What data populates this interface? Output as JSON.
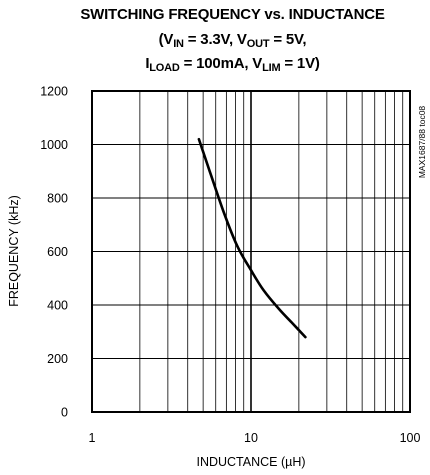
{
  "chart_data": {
    "type": "line",
    "title_line1": "SWITCHING FREQUENCY vs. INDUCTANCE",
    "title_line2": {
      "open": "(V",
      "vin_sub": "IN",
      "vin_val": " = 3.3V,  V",
      "vout_sub": "OUT",
      "vout_val": " = 5V,"
    },
    "title_line3": {
      "pre": "I",
      "iload_sub": "LOAD",
      "iload_val": " = 100mA,  V",
      "vlim_sub": "LIM",
      "vlim_val": " = 1V)"
    },
    "xlabel": "INDUCTANCE (µH)",
    "ylabel": "FREQUENCY (kHz)",
    "x_scale": "log",
    "xlim": [
      1,
      100
    ],
    "ylim": [
      0,
      1200
    ],
    "x_tick_labels": [
      "1",
      "10",
      "100"
    ],
    "y_tick_labels": [
      "0",
      "200",
      "400",
      "600",
      "800",
      "1000",
      "1200"
    ],
    "grid": true,
    "code_label": "MAX1687/88 toc08",
    "series": [
      {
        "x": [
          4.7,
          5.5,
          6.8,
          8.2,
          10,
          12,
          15,
          18,
          22
        ],
        "y": [
          1020,
          900,
          740,
          620,
          530,
          455,
          385,
          335,
          280
        ]
      }
    ]
  }
}
